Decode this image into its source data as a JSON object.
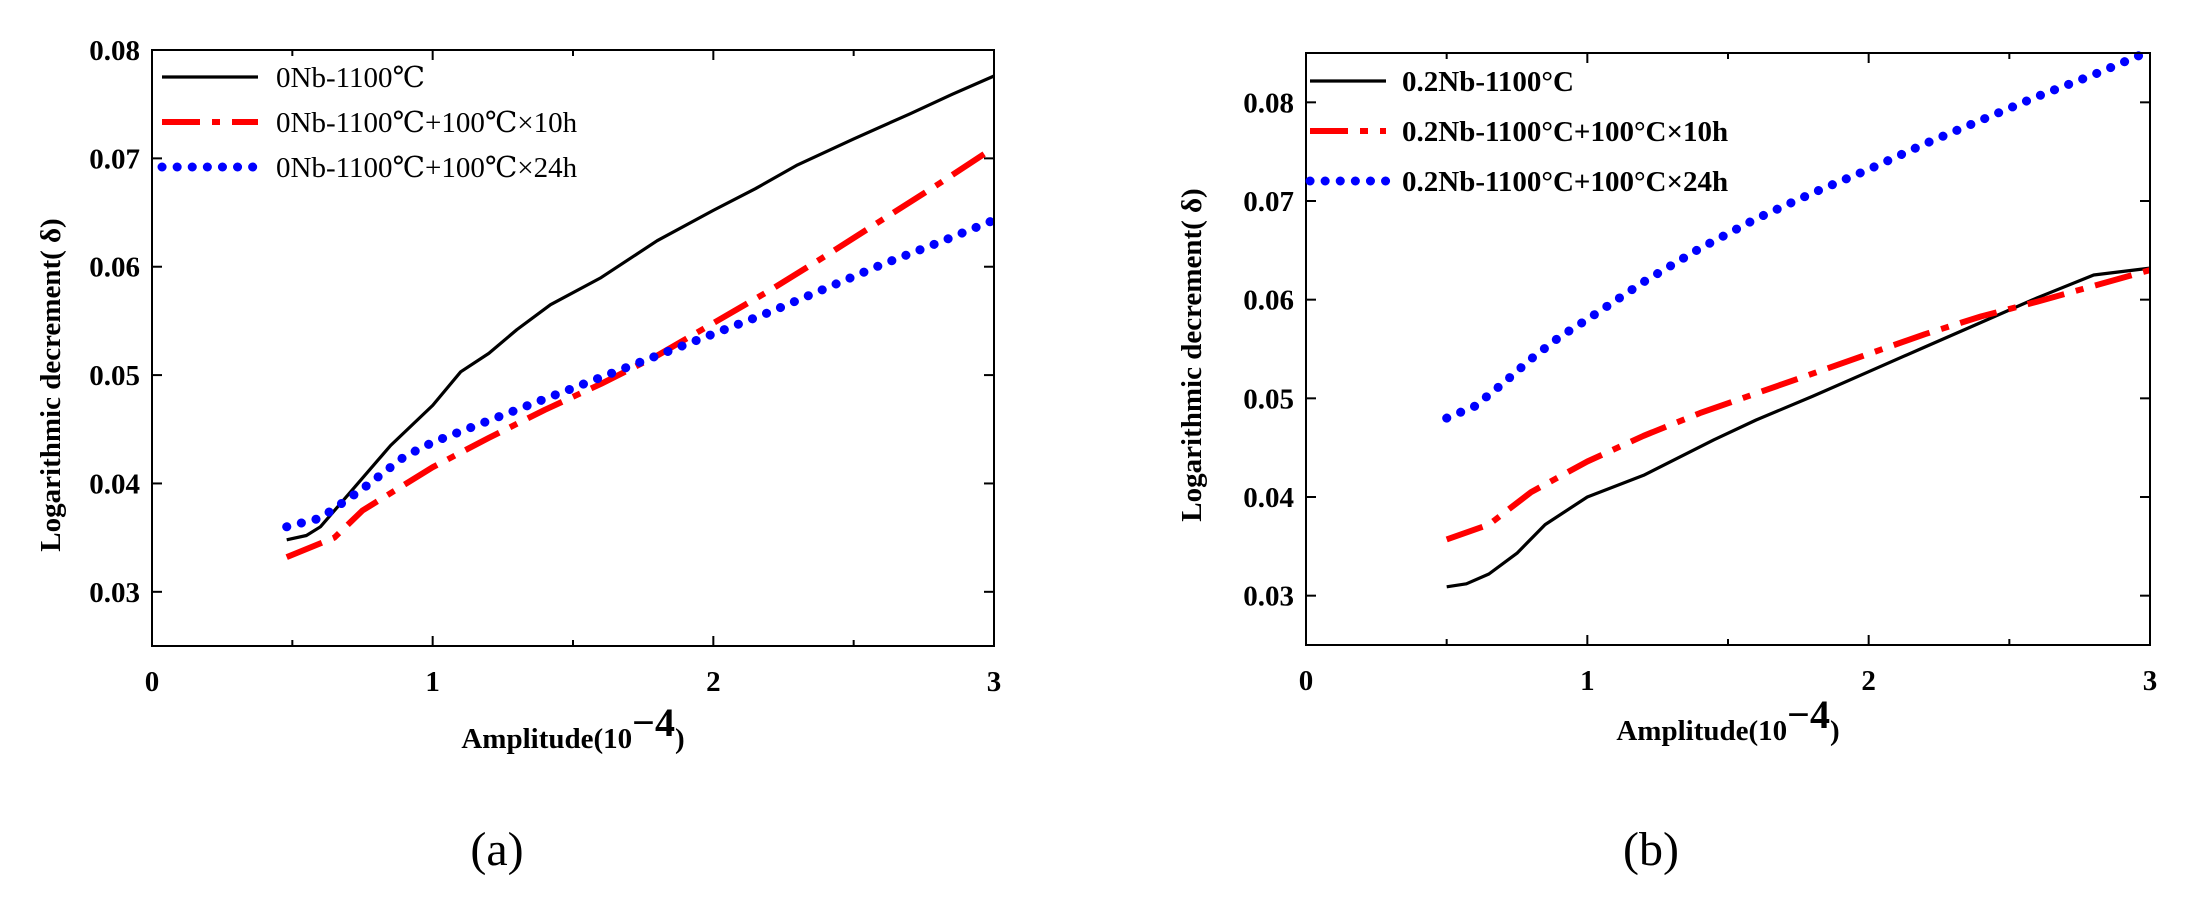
{
  "chart_data": [
    {
      "type": "line",
      "panel": "(a)",
      "xlabel": "Amplitude",
      "xlabel_unit_base": "10",
      "xlabel_unit_exp": "−4",
      "ylabel": "Logarithmic decrement( δ)",
      "xlim": [
        0,
        3
      ],
      "ylim": [
        0.025,
        0.08
      ],
      "xticks": [
        0,
        1,
        2,
        3
      ],
      "xtick_labels": [
        "0",
        "1",
        "2",
        "3"
      ],
      "yticks": [
        0.03,
        0.04,
        0.05,
        0.06,
        0.07,
        0.08
      ],
      "ytick_labels": [
        "0.03",
        "0.04",
        "0.05",
        "0.06",
        "0.07",
        "0.08"
      ],
      "legend_position": "top-left",
      "legend_bold": false,
      "series": [
        {
          "name": "0Nb-1100℃",
          "style": "solid",
          "color": "#000000",
          "x": [
            0.48,
            0.55,
            0.6,
            0.7,
            0.85,
            1.0,
            1.1,
            1.2,
            1.3,
            1.42,
            1.6,
            1.8,
            2.0,
            2.15,
            2.3,
            2.5,
            2.7,
            2.85,
            3.0
          ],
          "y": [
            0.0348,
            0.0352,
            0.036,
            0.039,
            0.0435,
            0.0472,
            0.0503,
            0.052,
            0.0542,
            0.0565,
            0.059,
            0.0624,
            0.0652,
            0.0672,
            0.0694,
            0.0718,
            0.0741,
            0.0759,
            0.0776
          ]
        },
        {
          "name": "0Nb-1100℃+100℃×10h",
          "style": "dashdot",
          "color": "#ff0000",
          "x": [
            0.48,
            0.65,
            0.75,
            1.0,
            1.2,
            1.4,
            1.6,
            1.8,
            2.0,
            2.2,
            2.4,
            2.6,
            2.8,
            3.0
          ],
          "y": [
            0.0332,
            0.035,
            0.0375,
            0.0415,
            0.0442,
            0.0468,
            0.0492,
            0.0518,
            0.0548,
            0.0578,
            0.061,
            0.0643,
            0.0676,
            0.071
          ]
        },
        {
          "name": "0Nb-1100℃+100℃×24h",
          "style": "dotted",
          "color": "#0000ff",
          "x": [
            0.48,
            0.6,
            0.75,
            0.9,
            1.0,
            1.2,
            1.4,
            1.6,
            1.8,
            2.0,
            2.2,
            2.4,
            2.6,
            2.8,
            3.0
          ],
          "y": [
            0.036,
            0.0368,
            0.0395,
            0.0425,
            0.0438,
            0.0458,
            0.0478,
            0.0498,
            0.0518,
            0.0538,
            0.0558,
            0.058,
            0.0602,
            0.0622,
            0.0643
          ]
        }
      ]
    },
    {
      "type": "line",
      "panel": "(b)",
      "xlabel": "Amplitude",
      "xlabel_unit_base": "10",
      "xlabel_unit_exp": "−4",
      "ylabel": "Logarithmic decrement( δ)",
      "xlim": [
        0,
        3
      ],
      "ylim": [
        0.025,
        0.085
      ],
      "xticks": [
        0,
        1,
        2,
        3
      ],
      "xtick_labels": [
        "0",
        "1",
        "2",
        "3"
      ],
      "yticks": [
        0.03,
        0.04,
        0.05,
        0.06,
        0.07,
        0.08
      ],
      "ytick_labels": [
        "0.03",
        "0.04",
        "0.05",
        "0.06",
        "0.07",
        "0.08"
      ],
      "legend_position": "top-left",
      "legend_bold": true,
      "series": [
        {
          "name": "0.2Nb-1100°C",
          "style": "solid",
          "color": "#000000",
          "x": [
            0.5,
            0.57,
            0.65,
            0.75,
            0.85,
            1.0,
            1.2,
            1.45,
            1.6,
            1.8,
            2.0,
            2.2,
            2.4,
            2.6,
            2.8,
            3.0
          ],
          "y": [
            0.0309,
            0.0312,
            0.0322,
            0.0343,
            0.0372,
            0.04,
            0.0422,
            0.0458,
            0.0478,
            0.0502,
            0.0527,
            0.0552,
            0.0577,
            0.0602,
            0.0625,
            0.0632
          ]
        },
        {
          "name": "0.2Nb-1100°C+100°C×10h",
          "style": "dashdot",
          "color": "#ff0000",
          "x": [
            0.5,
            0.65,
            0.8,
            1.0,
            1.2,
            1.4,
            1.6,
            1.8,
            2.0,
            2.2,
            2.4,
            2.6,
            2.8,
            3.0
          ],
          "y": [
            0.0357,
            0.0372,
            0.0405,
            0.0436,
            0.0462,
            0.0485,
            0.0505,
            0.0525,
            0.0545,
            0.0565,
            0.0583,
            0.0598,
            0.0614,
            0.063
          ]
        },
        {
          "name": "0.2Nb-1100°C+100°C×24h",
          "style": "dotted",
          "color": "#0000ff",
          "x": [
            0.5,
            0.6,
            0.7,
            0.8,
            0.9,
            1.0,
            1.2,
            1.4,
            1.6,
            1.8,
            2.0,
            2.2,
            2.4,
            2.6,
            2.8,
            3.0
          ],
          "y": [
            0.048,
            0.0492,
            0.0515,
            0.054,
            0.0562,
            0.058,
            0.0618,
            0.0652,
            0.0682,
            0.0708,
            0.0732,
            0.0758,
            0.0782,
            0.0806,
            0.0828,
            0.0852
          ]
        }
      ]
    }
  ]
}
